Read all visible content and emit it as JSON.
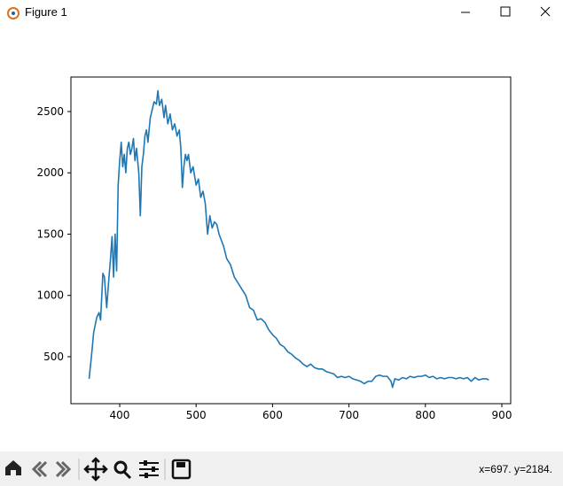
{
  "window": {
    "title": "Figure 1"
  },
  "toolbar": {
    "status": "x=697. y=2184."
  },
  "chart_data": {
    "type": "line",
    "color": "#1f77b4",
    "xlim": [
      336.2,
      911.6
    ],
    "ylim": [
      117,
      2781.6
    ],
    "xticks": [
      400,
      500,
      600,
      700,
      800,
      900
    ],
    "yticks": [
      500,
      1000,
      1500,
      2000,
      2500
    ],
    "x": [
      360,
      363,
      366,
      370,
      373,
      375,
      378,
      380,
      383,
      386,
      388,
      390,
      392,
      394,
      396,
      398,
      400,
      402,
      404,
      406,
      408,
      410,
      412,
      414,
      416,
      418,
      420,
      422,
      425,
      427,
      429,
      431,
      433,
      435,
      437,
      440,
      442,
      445,
      448,
      450,
      452,
      455,
      458,
      460,
      463,
      466,
      469,
      472,
      475,
      478,
      480,
      482,
      484,
      486,
      488,
      490,
      493,
      496,
      500,
      503,
      506,
      509,
      512,
      515,
      518,
      521,
      524,
      527,
      530,
      533,
      536,
      540,
      545,
      550,
      555,
      560,
      565,
      570,
      575,
      580,
      585,
      590,
      595,
      600,
      605,
      610,
      615,
      620,
      625,
      630,
      635,
      640,
      645,
      650,
      655,
      660,
      665,
      670,
      675,
      680,
      685,
      690,
      695,
      700,
      705,
      710,
      715,
      720,
      725,
      730,
      735,
      740,
      745,
      750,
      755,
      757,
      760,
      765,
      770,
      775,
      780,
      785,
      790,
      795,
      800,
      805,
      810,
      815,
      820,
      825,
      830,
      835,
      840,
      845,
      850,
      855,
      860,
      865,
      870,
      875,
      880,
      883
    ],
    "values": [
      320,
      500,
      700,
      820,
      860,
      800,
      1180,
      1150,
      900,
      1150,
      1300,
      1480,
      1150,
      1500,
      1200,
      1900,
      2100,
      2250,
      2050,
      2150,
      2000,
      2200,
      2250,
      2150,
      2200,
      2280,
      2100,
      2200,
      2000,
      1650,
      2050,
      2150,
      2300,
      2350,
      2250,
      2450,
      2500,
      2580,
      2560,
      2670,
      2550,
      2600,
      2450,
      2550,
      2400,
      2480,
      2350,
      2400,
      2300,
      2350,
      2200,
      1880,
      2050,
      2150,
      2100,
      2150,
      2000,
      2050,
      1900,
      1950,
      1800,
      1850,
      1750,
      1500,
      1650,
      1550,
      1600,
      1580,
      1500,
      1450,
      1400,
      1300,
      1250,
      1150,
      1100,
      1050,
      1000,
      900,
      880,
      800,
      810,
      780,
      720,
      680,
      650,
      600,
      580,
      540,
      520,
      490,
      470,
      440,
      420,
      440,
      410,
      400,
      400,
      380,
      370,
      360,
      330,
      340,
      330,
      340,
      320,
      310,
      300,
      280,
      300,
      300,
      340,
      350,
      340,
      340,
      300,
      250,
      320,
      310,
      330,
      320,
      340,
      330,
      340,
      340,
      350,
      330,
      340,
      320,
      330,
      320,
      330,
      330,
      320,
      330,
      320,
      330,
      300,
      330,
      310,
      320,
      320,
      310
    ]
  }
}
